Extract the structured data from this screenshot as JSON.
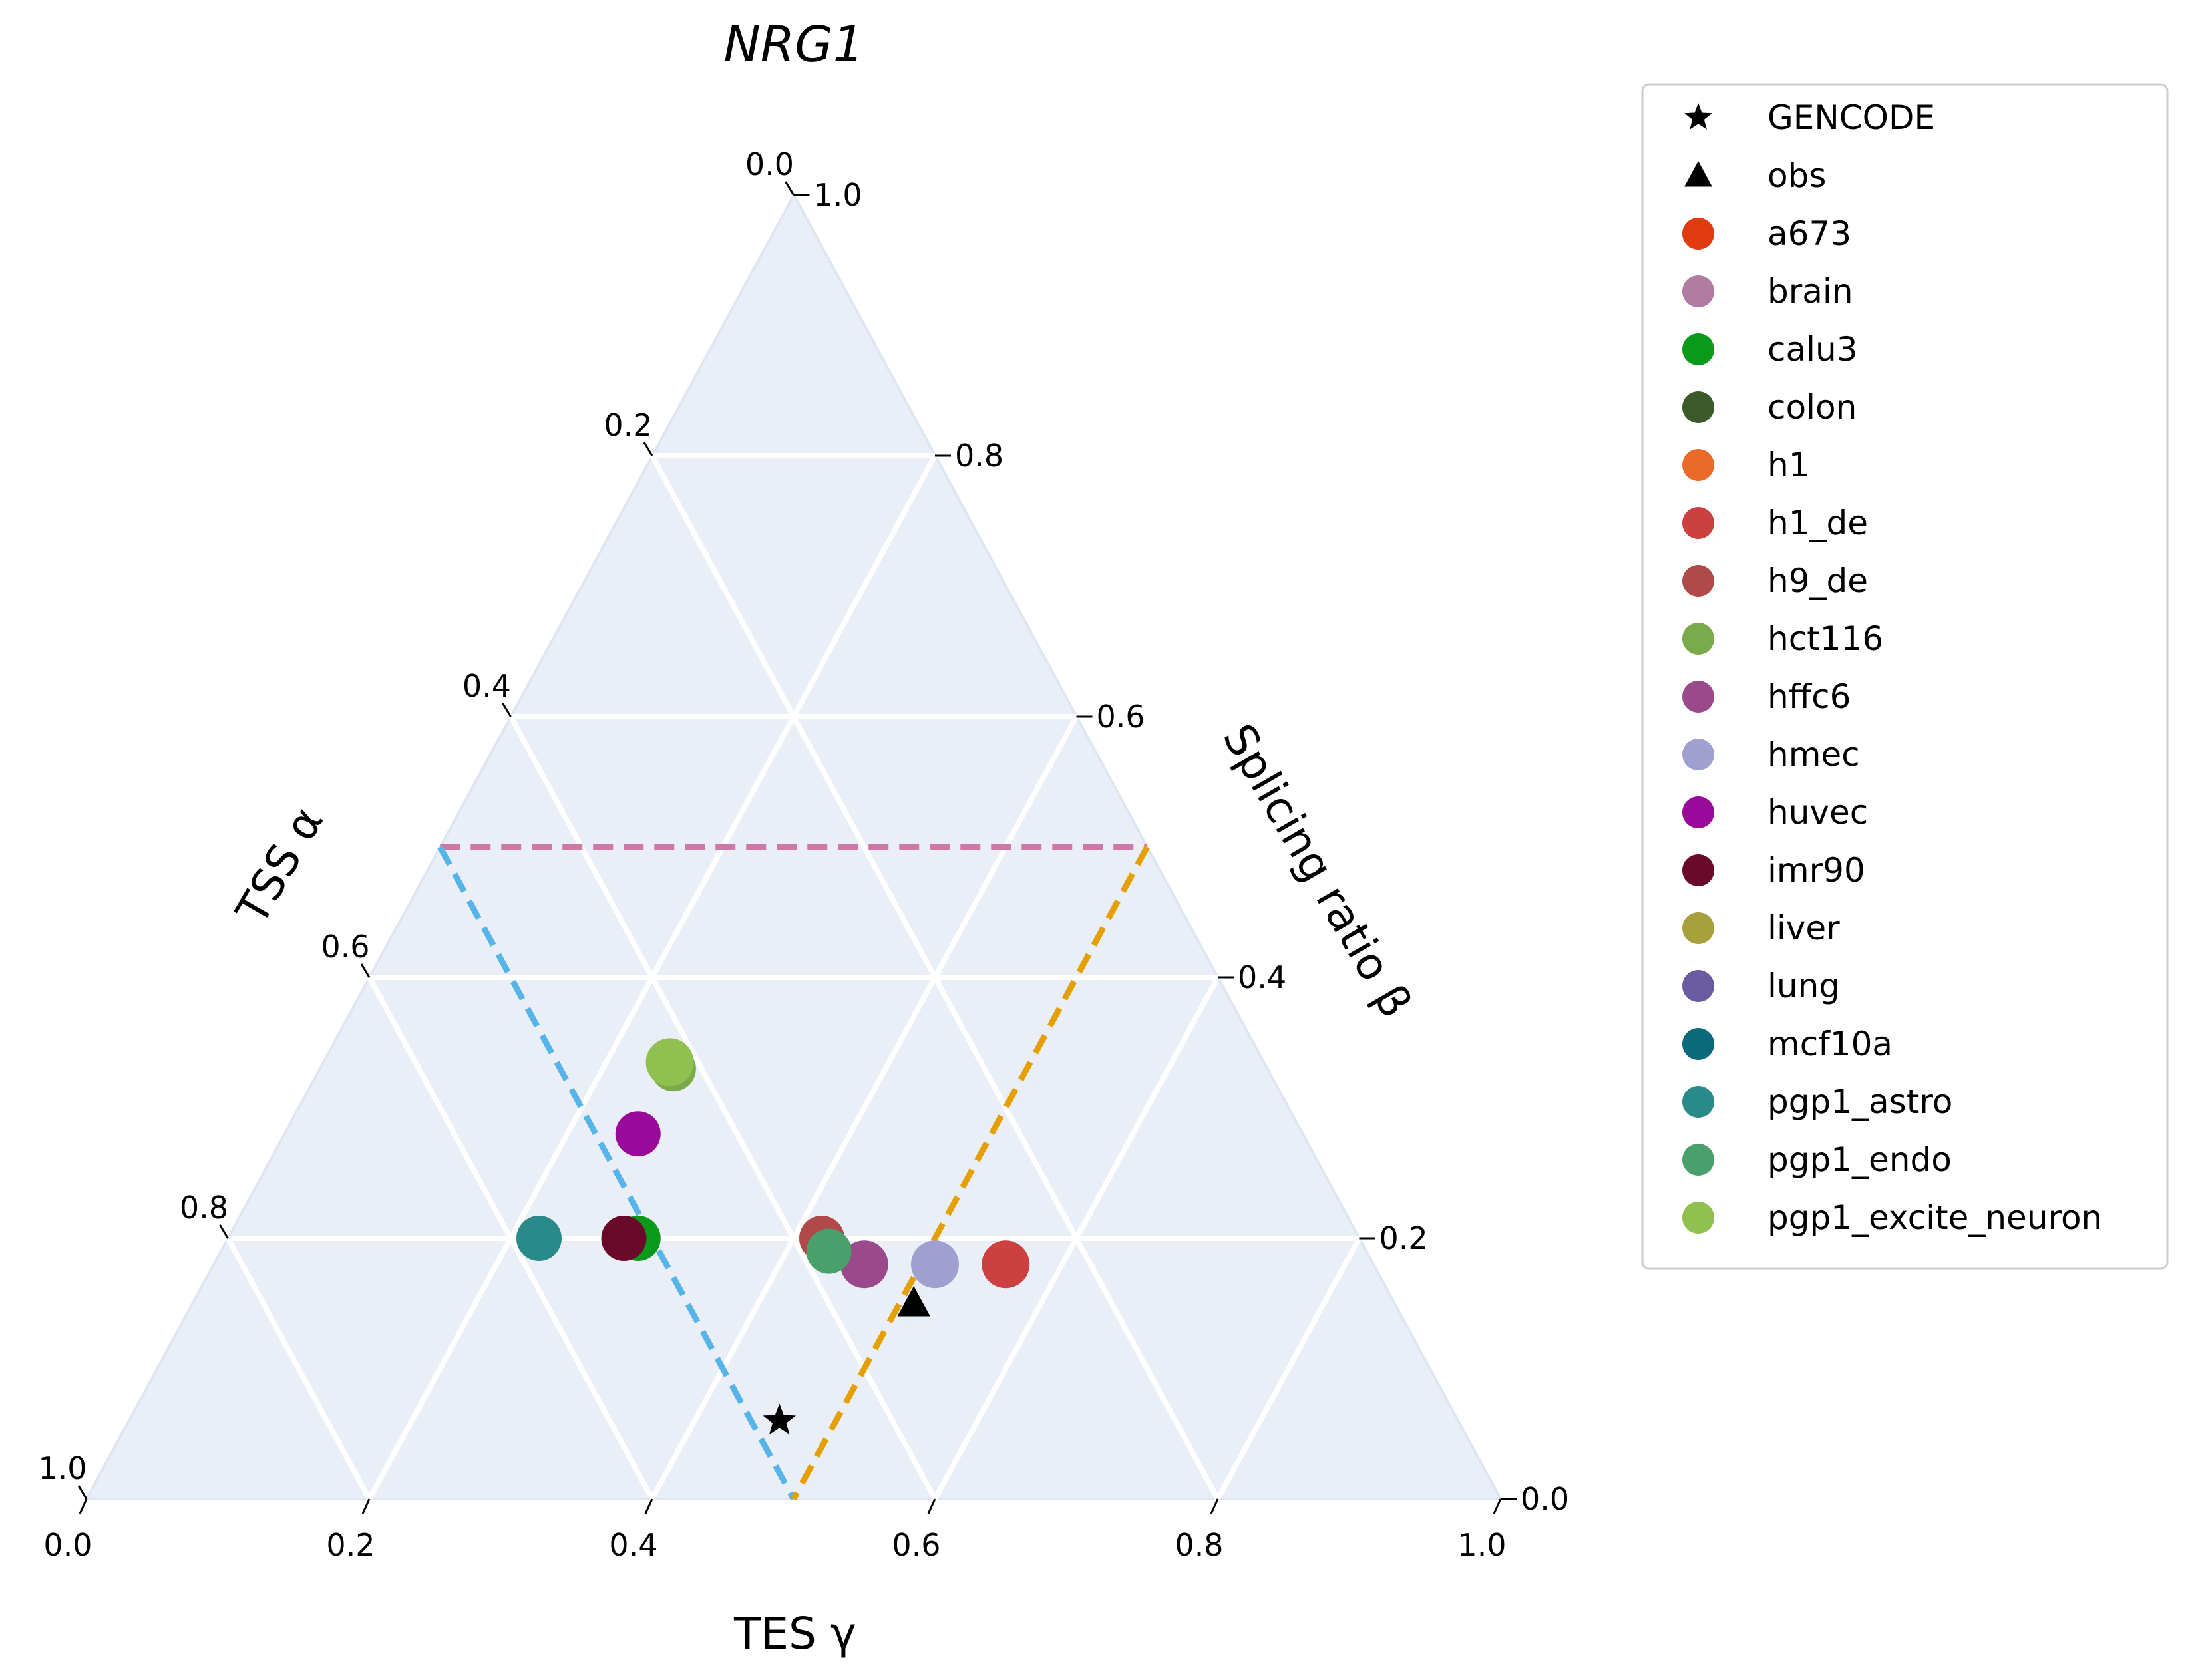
{
  "chart_data": {
    "type": "scatter",
    "subtype": "ternary",
    "title": "NRG1",
    "axes": {
      "bottom": {
        "label": "TES γ",
        "range": [
          0,
          1
        ],
        "ticks": [
          "0.0",
          "0.2",
          "0.4",
          "0.6",
          "0.8",
          "1.0"
        ]
      },
      "left": {
        "label": "TSS α",
        "range": [
          0,
          1
        ],
        "ticks": [
          "0.0",
          "0.2",
          "0.4",
          "0.6",
          "0.8",
          "1.0"
        ]
      },
      "right": {
        "label": "Splicing ratio β",
        "range": [
          0,
          1
        ],
        "ticks": [
          "0.0",
          "0.2",
          "0.4",
          "0.6",
          "0.8",
          "1.0"
        ]
      }
    },
    "grid": true,
    "background": "#eaeff7",
    "reference_lines": [
      {
        "color": "#cc79a7",
        "style": "dashed",
        "points": [
          {
            "alpha": 0.5,
            "beta": 0.5,
            "gamma": 0.0
          },
          {
            "alpha": 0.0,
            "beta": 0.5,
            "gamma": 0.5
          }
        ]
      },
      {
        "color": "#56b4e9",
        "style": "dashed",
        "points": [
          {
            "alpha": 0.5,
            "beta": 0.5,
            "gamma": 0.0
          },
          {
            "alpha": 0.5,
            "beta": 0.0,
            "gamma": 0.5
          }
        ]
      },
      {
        "color": "#e69f00",
        "style": "dashed",
        "points": [
          {
            "alpha": 0.0,
            "beta": 0.5,
            "gamma": 0.5
          },
          {
            "alpha": 0.5,
            "beta": 0.0,
            "gamma": 0.5
          }
        ]
      }
    ],
    "series": [
      {
        "name": "GENCODE",
        "marker": "star",
        "color": "#000000",
        "points": [
          {
            "alpha": 0.48,
            "beta": 0.06,
            "gamma": 0.46
          }
        ]
      },
      {
        "name": "obs",
        "marker": "triangle",
        "color": "#000000",
        "points": [
          {
            "alpha": 0.34,
            "beta": 0.15,
            "gamma": 0.51
          }
        ]
      },
      {
        "name": "a673",
        "marker": "circle",
        "color": "#e03a10",
        "points": []
      },
      {
        "name": "brain",
        "marker": "circle",
        "color": "#b07aa1",
        "points": []
      },
      {
        "name": "calu3",
        "marker": "circle",
        "color": "#0a9a1a",
        "points": [
          {
            "alpha": 0.51,
            "beta": 0.2,
            "gamma": 0.29
          }
        ]
      },
      {
        "name": "colon",
        "marker": "circle",
        "color": "#3a5a2a",
        "points": []
      },
      {
        "name": "h1",
        "marker": "circle",
        "color": "#ea6a2a",
        "points": []
      },
      {
        "name": "h1_de",
        "marker": "circle",
        "color": "#cc4040",
        "points": [
          {
            "alpha": 0.26,
            "beta": 0.18,
            "gamma": 0.56
          }
        ]
      },
      {
        "name": "h9_de",
        "marker": "circle",
        "color": "#b04a4a",
        "points": [
          {
            "alpha": 0.38,
            "beta": 0.2,
            "gamma": 0.42
          }
        ]
      },
      {
        "name": "hct116",
        "marker": "circle",
        "color": "#7aaa4a",
        "points": [
          {
            "alpha": 0.42,
            "beta": 0.33,
            "gamma": 0.25
          }
        ]
      },
      {
        "name": "hffc6",
        "marker": "circle",
        "color": "#9a4a8a",
        "points": [
          {
            "alpha": 0.36,
            "beta": 0.18,
            "gamma": 0.46
          }
        ]
      },
      {
        "name": "hmec",
        "marker": "circle",
        "color": "#a0a0d0",
        "points": [
          {
            "alpha": 0.31,
            "beta": 0.18,
            "gamma": 0.51
          }
        ]
      },
      {
        "name": "huvec",
        "marker": "circle",
        "color": "#9a0a9a",
        "points": [
          {
            "alpha": 0.47,
            "beta": 0.28,
            "gamma": 0.25
          }
        ]
      },
      {
        "name": "imr90",
        "marker": "circle",
        "color": "#6a0a2a",
        "points": [
          {
            "alpha": 0.52,
            "beta": 0.2,
            "gamma": 0.28
          }
        ]
      },
      {
        "name": "liver",
        "marker": "circle",
        "color": "#a8a03a",
        "points": []
      },
      {
        "name": "lung",
        "marker": "circle",
        "color": "#6a5aa0",
        "points": []
      },
      {
        "name": "mcf10a",
        "marker": "circle",
        "color": "#0a6a7a",
        "points": []
      },
      {
        "name": "pgp1_astro",
        "marker": "circle",
        "color": "#2a8a8a",
        "points": [
          {
            "alpha": 0.58,
            "beta": 0.2,
            "gamma": 0.22
          }
        ]
      },
      {
        "name": "pgp1_endo",
        "marker": "circle",
        "color": "#4aa06a",
        "points": [
          {
            "alpha": 0.38,
            "beta": 0.19,
            "gamma": 0.43
          }
        ]
      },
      {
        "name": "pgp1_excite_neuron",
        "marker": "circle",
        "color": "#90c050",
        "points": [
          {
            "alpha": 0.42,
            "beta": 0.335,
            "gamma": 0.245
          }
        ]
      }
    ],
    "legend": {
      "placement": "outside-right"
    }
  }
}
